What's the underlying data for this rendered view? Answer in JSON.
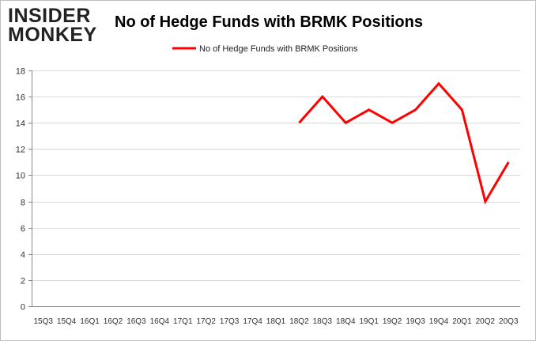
{
  "logo": {
    "line1": "INSIDER",
    "line2": "MONKEY"
  },
  "chart_data": {
    "type": "line",
    "title": "No of Hedge Funds with BRMK Positions",
    "xlabel": "",
    "ylabel": "",
    "ylim": [
      0,
      18
    ],
    "yticks": [
      0,
      2,
      4,
      6,
      8,
      10,
      12,
      14,
      16,
      18
    ],
    "grid": true,
    "legend_position": "top",
    "categories": [
      "15Q3",
      "15Q4",
      "16Q1",
      "16Q2",
      "16Q3",
      "16Q4",
      "17Q1",
      "17Q2",
      "17Q3",
      "17Q4",
      "18Q1",
      "18Q2",
      "18Q3",
      "18Q4",
      "19Q1",
      "19Q2",
      "19Q3",
      "19Q4",
      "20Q1",
      "20Q2",
      "20Q3"
    ],
    "series": [
      {
        "name": "No of Hedge Funds with BRMK Positions",
        "color": "#ff0000",
        "values": [
          null,
          null,
          null,
          null,
          null,
          null,
          null,
          null,
          null,
          null,
          null,
          14,
          16,
          14,
          15,
          14,
          15,
          17,
          15,
          8,
          11
        ]
      }
    ]
  }
}
